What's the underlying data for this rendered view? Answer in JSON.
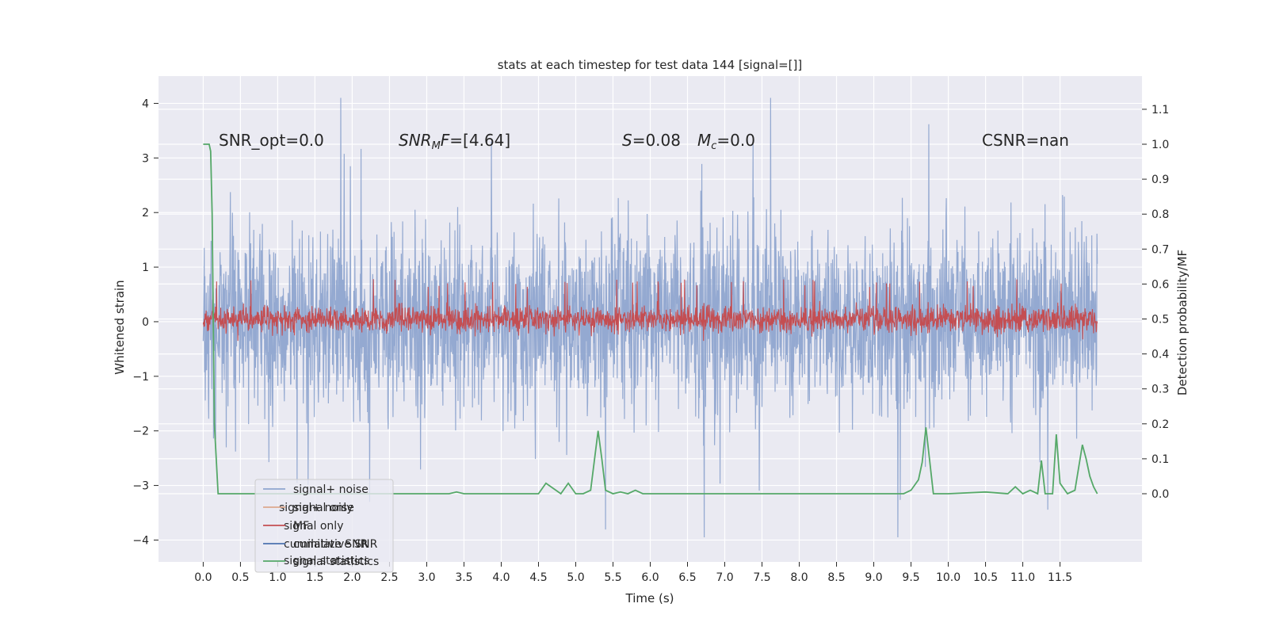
{
  "chart_data": {
    "type": "line",
    "title": "stats at each timestep for test data 144 [signal=[]]",
    "xlabel": "Time (s)",
    "ylabel_left": "Whitened strain",
    "ylabel_right": "Detection probability/MF",
    "xlim": [
      -0.6,
      12.6
    ],
    "ylim_left": [
      -4.4,
      4.5
    ],
    "ylim_right": [
      -0.195,
      1.195
    ],
    "x_ticks": [
      0.0,
      0.5,
      1.0,
      1.5,
      2.0,
      2.5,
      3.0,
      3.5,
      4.0,
      4.5,
      5.0,
      5.5,
      6.0,
      6.5,
      7.0,
      7.5,
      8.0,
      8.5,
      9.0,
      9.5,
      10.0,
      10.5,
      11.0,
      11.5
    ],
    "x_tick_labels": [
      "0.0",
      "0.5",
      "1.0",
      "1.5",
      "2.0",
      "2.5",
      "3.0",
      "3.5",
      "4.0",
      "4.5",
      "5.0",
      "5.5",
      "6.0",
      "6.5",
      "7.0",
      "7.5",
      "8.0",
      "8.5",
      "9.0",
      "9.5",
      "10.0",
      "10.5",
      "11.0",
      "11.5"
    ],
    "y_left_ticks": [
      -4,
      -3,
      -2,
      -1,
      0,
      1,
      2,
      3,
      4
    ],
    "y_left_tick_labels": [
      "−4",
      "−3",
      "−2",
      "−1",
      "0",
      "1",
      "2",
      "3",
      "4"
    ],
    "y_right_ticks": [
      0.0,
      0.1,
      0.2,
      0.3,
      0.4,
      0.5,
      0.6,
      0.7,
      0.8,
      0.9,
      1.0,
      1.1
    ],
    "y_right_tick_labels": [
      "0.0",
      "0.1",
      "0.2",
      "0.3",
      "0.4",
      "0.5",
      "0.6",
      "0.7",
      "0.8",
      "0.9",
      "1.0",
      "1.1"
    ],
    "grid": true,
    "legend_placement": "lower-left",
    "legend_entries": [
      {
        "label": "signal+ noise",
        "color": "#8fa5cf"
      },
      {
        "label": "signal only",
        "color": "#dda98e"
      },
      {
        "label": "MF",
        "color": "#c44e52"
      },
      {
        "label": "cumilative SNR",
        "color": "#4c72b0"
      },
      {
        "label": "signal statistics",
        "color": "#55a868"
      }
    ],
    "legend_ghost_text": [
      "signal+ noise",
      "signal only",
      "cumilative SNR",
      "signal statistics"
    ],
    "annotations": [
      {
        "id": "snr-opt",
        "text": "SNR_opt=0.0"
      },
      {
        "id": "snr-mf",
        "base": "SNR",
        "sub": "M",
        "rest": "F=[4.64]"
      },
      {
        "id": "s-stat",
        "base": "S",
        "rest": "=0.08"
      },
      {
        "id": "mc-stat",
        "base": "M",
        "sub": "c",
        "rest": "=0.0"
      },
      {
        "id": "csnr",
        "text": "CSNR=nan"
      }
    ],
    "series": [
      {
        "name": "signal+ noise",
        "axis": "left",
        "color": "#8fa5cf",
        "x_range": [
          0.0,
          12.0
        ],
        "band": [
          -1.3,
          1.35
        ],
        "typical_peak": [
          -2.6,
          2.6
        ],
        "max": 4.1,
        "min": -3.95
      },
      {
        "name": "MF",
        "axis": "left",
        "color": "#c44e52",
        "x_range": [
          0.0,
          12.0
        ],
        "band": [
          -0.38,
          0.45
        ],
        "max": 0.78
      },
      {
        "name": "signal statistics",
        "axis": "right",
        "color": "#55a868",
        "x": [
          0.0,
          0.05,
          0.08,
          0.1,
          0.12,
          0.15,
          0.2,
          0.3,
          0.5,
          1.0,
          2.0,
          3.0,
          3.3,
          3.4,
          3.5,
          4.0,
          4.5,
          4.6,
          4.7,
          4.8,
          4.9,
          5.0,
          5.1,
          5.2,
          5.3,
          5.35,
          5.4,
          5.5,
          5.6,
          5.7,
          5.8,
          5.9,
          6.0,
          7.0,
          8.0,
          8.5,
          9.0,
          9.4,
          9.5,
          9.6,
          9.65,
          9.7,
          9.8,
          10.0,
          10.5,
          10.8,
          10.9,
          11.0,
          11.1,
          11.2,
          11.25,
          11.3,
          11.4,
          11.45,
          11.5,
          11.6,
          11.7,
          11.8,
          11.85,
          11.9,
          11.95,
          12.0
        ],
        "y": [
          1.0,
          1.0,
          1.0,
          0.98,
          0.8,
          0.2,
          0.0,
          0.0,
          0.0,
          0.0,
          0.0,
          0.0,
          0.0,
          0.005,
          0.0,
          0.0,
          0.0,
          0.03,
          0.015,
          0.0,
          0.03,
          0.0,
          0.0,
          0.01,
          0.18,
          0.1,
          0.01,
          0.0,
          0.005,
          0.0,
          0.01,
          0.0,
          0.0,
          0.0,
          0.0,
          0.0,
          0.0,
          0.0,
          0.01,
          0.04,
          0.09,
          0.19,
          0.0,
          0.0,
          0.005,
          0.0,
          0.02,
          0.0,
          0.01,
          0.0,
          0.095,
          0.0,
          0.0,
          0.17,
          0.03,
          0.0,
          0.01,
          0.14,
          0.1,
          0.05,
          0.02,
          0.0
        ]
      }
    ]
  }
}
